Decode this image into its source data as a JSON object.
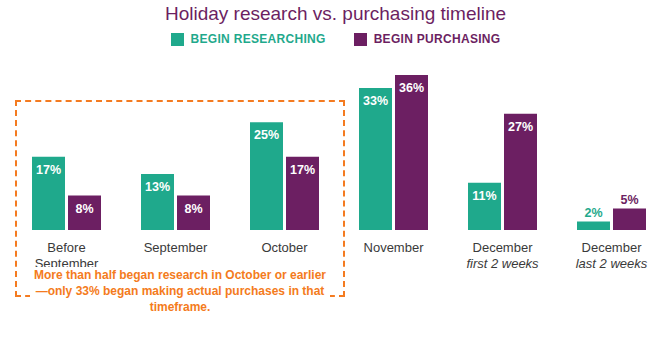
{
  "chart_data": {
    "type": "bar",
    "title": "Holiday research vs. purchasing timeline",
    "categories": [
      "Before September",
      "September",
      "October",
      "November",
      "December first 2 weeks",
      "December last 2 weeks"
    ],
    "series": [
      {
        "name": "BEGIN RESEARCHING",
        "color": "#1fa98c",
        "values": [
          17,
          13,
          25,
          33,
          11,
          2
        ],
        "value_labels": [
          "17%",
          "13%",
          "25%",
          "33%",
          "11%",
          "2%"
        ]
      },
      {
        "name": "BEGIN PURCHASING",
        "color": "#6c1f62",
        "values": [
          8,
          8,
          17,
          36,
          27,
          5
        ],
        "value_labels": [
          "8%",
          "8%",
          "17%",
          "36%",
          "27%",
          "5%"
        ]
      }
    ],
    "ylim": [
      0,
      36
    ],
    "tick_labels": "x",
    "data_labels": true,
    "legend": "top",
    "annotation": "More than half began research in October or earlier—only 33% began making actual purchases in that timeframe."
  }
}
